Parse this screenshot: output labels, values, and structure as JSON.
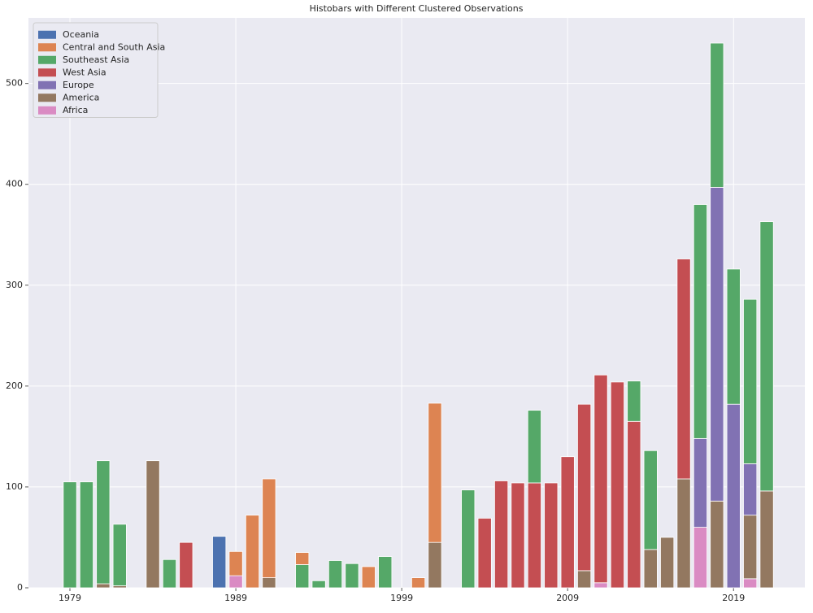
{
  "chart_data": {
    "type": "bar",
    "stacked": true,
    "title": "Histobars with Different Clustered Observations",
    "x": [
      1979,
      1980,
      1981,
      1982,
      1984,
      1985,
      1986,
      1988,
      1989,
      1990,
      1991,
      1993,
      1994,
      1995,
      1996,
      1997,
      1998,
      2000,
      2001,
      2003,
      2004,
      2005,
      2006,
      2007,
      2008,
      2009,
      2010,
      2011,
      2012,
      2013,
      2014,
      2015,
      2016,
      2017,
      2018,
      2019,
      2020,
      2021
    ],
    "series": [
      {
        "name": "Oceania",
        "color": "#4c72b0",
        "values": [
          0,
          0,
          0,
          0,
          0,
          0,
          0,
          51,
          0,
          0,
          0,
          0,
          0,
          0,
          0,
          0,
          0,
          0,
          0,
          0,
          0,
          0,
          0,
          0,
          0,
          0,
          0,
          0,
          0,
          0,
          0,
          0,
          0,
          0,
          0,
          0,
          0,
          0
        ]
      },
      {
        "name": "Central and South Asia",
        "color": "#dd8452",
        "values": [
          0,
          0,
          0,
          0,
          0,
          0,
          0,
          0,
          24,
          72,
          98,
          12,
          0,
          0,
          0,
          21,
          0,
          10,
          138,
          0,
          0,
          0,
          0,
          0,
          0,
          0,
          0,
          0,
          0,
          0,
          0,
          0,
          0,
          0,
          0,
          0,
          0,
          0
        ]
      },
      {
        "name": "Southeast Asia",
        "color": "#55a868",
        "values": [
          105,
          105,
          122,
          61,
          0,
          28,
          0,
          0,
          0,
          0,
          0,
          23,
          7,
          27,
          24,
          0,
          31,
          0,
          0,
          97,
          0,
          0,
          0,
          72,
          0,
          0,
          0,
          0,
          0,
          40,
          98,
          0,
          0,
          232,
          143,
          134,
          163,
          267
        ]
      },
      {
        "name": "West Asia",
        "color": "#c44e52",
        "values": [
          0,
          0,
          0,
          0,
          0,
          0,
          45,
          0,
          0,
          0,
          0,
          0,
          0,
          0,
          0,
          0,
          0,
          0,
          0,
          0,
          69,
          106,
          104,
          104,
          104,
          130,
          165,
          206,
          204,
          165,
          0,
          0,
          218,
          0,
          0,
          0,
          0,
          0
        ]
      },
      {
        "name": "Europe",
        "color": "#8172b3",
        "values": [
          0,
          0,
          0,
          0,
          0,
          0,
          0,
          0,
          0,
          0,
          0,
          0,
          0,
          0,
          0,
          0,
          0,
          0,
          0,
          0,
          0,
          0,
          0,
          0,
          0,
          0,
          0,
          0,
          0,
          0,
          0,
          0,
          0,
          88,
          311,
          182,
          51,
          0
        ]
      },
      {
        "name": "America",
        "color": "#937860",
        "values": [
          0,
          0,
          4,
          2,
          126,
          0,
          0,
          0,
          0,
          0,
          10,
          0,
          0,
          0,
          0,
          0,
          0,
          0,
          45,
          0,
          0,
          0,
          0,
          0,
          0,
          0,
          17,
          0,
          0,
          0,
          38,
          50,
          108,
          0,
          86,
          0,
          63,
          96
        ]
      },
      {
        "name": "Africa",
        "color": "#da8bc3",
        "values": [
          0,
          0,
          0,
          0,
          0,
          0,
          0,
          0,
          12,
          0,
          0,
          0,
          0,
          0,
          0,
          0,
          0,
          0,
          0,
          0,
          0,
          0,
          0,
          0,
          0,
          0,
          0,
          5,
          0,
          0,
          0,
          0,
          0,
          60,
          0,
          0,
          9,
          0
        ]
      }
    ],
    "xlim": [
      1976.5,
      2023.3
    ],
    "xticks": [
      1979,
      1989,
      1999,
      2009,
      2019
    ],
    "ylim": [
      0,
      565
    ],
    "yticks": [
      0,
      100,
      200,
      300,
      400,
      500
    ],
    "grid": true,
    "legend": "upper left"
  }
}
